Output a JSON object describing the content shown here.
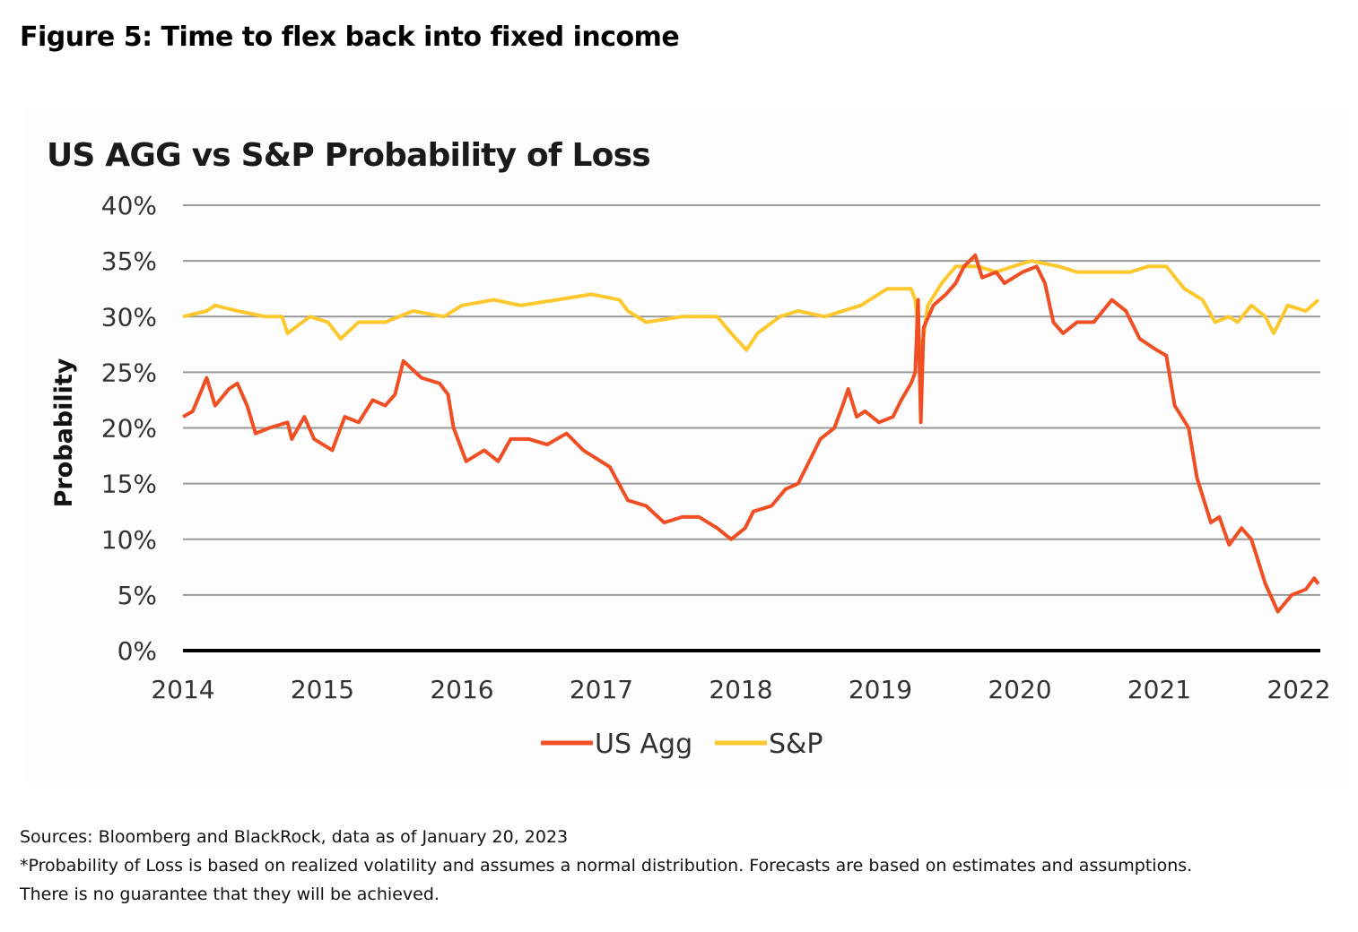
{
  "figure_title": "Figure 5: Time to flex back into fixed income",
  "notes": [
    "Sources: Bloomberg and BlackRock, data as of January 20, 2023",
    "*Probability of Loss is based on realized volatility and assumes a normal distribution. Forecasts are based on estimates and assumptions.",
    "There is no guarantee that they will be achieved."
  ],
  "chart_data": {
    "type": "line",
    "title": "US AGG vs S&P Probability of Loss",
    "xlabel": "",
    "ylabel": "Probability",
    "xlim": [
      2014,
      2022.16
    ],
    "ylim": [
      0,
      40
    ],
    "x_ticks": [
      2014,
      2015,
      2016,
      2017,
      2018,
      2019,
      2020,
      2021,
      2022
    ],
    "x_tick_labels": [
      "2014",
      "2015",
      "2016",
      "2017",
      "2018",
      "2019",
      "2020",
      "2021",
      "2022"
    ],
    "y_ticks": [
      0,
      5,
      10,
      15,
      20,
      25,
      30,
      35,
      40
    ],
    "y_tick_labels": [
      "0%",
      "5%",
      "10%",
      "15%",
      "20%",
      "25%",
      "30%",
      "35%",
      "40%"
    ],
    "grid": true,
    "legend_position": "bottom-center",
    "series": [
      {
        "name": "US Agg",
        "color": "#f04e23",
        "points": [
          [
            2014.0,
            21
          ],
          [
            2014.07,
            21.5
          ],
          [
            2014.17,
            24.5
          ],
          [
            2014.23,
            22
          ],
          [
            2014.33,
            23.5
          ],
          [
            2014.39,
            24
          ],
          [
            2014.46,
            22
          ],
          [
            2014.52,
            19.5
          ],
          [
            2014.62,
            20
          ],
          [
            2014.75,
            20.5
          ],
          [
            2014.78,
            19
          ],
          [
            2014.87,
            21
          ],
          [
            2014.94,
            19
          ],
          [
            2015.07,
            18
          ],
          [
            2015.16,
            21
          ],
          [
            2015.26,
            20.5
          ],
          [
            2015.36,
            22.5
          ],
          [
            2015.45,
            22
          ],
          [
            2015.52,
            23
          ],
          [
            2015.58,
            26
          ],
          [
            2015.71,
            24.5
          ],
          [
            2015.84,
            24
          ],
          [
            2015.9,
            23
          ],
          [
            2015.94,
            20
          ],
          [
            2016.03,
            17
          ],
          [
            2016.16,
            18
          ],
          [
            2016.26,
            17
          ],
          [
            2016.35,
            19
          ],
          [
            2016.48,
            19
          ],
          [
            2016.61,
            18.5
          ],
          [
            2016.75,
            19.5
          ],
          [
            2016.87,
            18
          ],
          [
            2017.06,
            16.5
          ],
          [
            2017.19,
            13.5
          ],
          [
            2017.32,
            13
          ],
          [
            2017.45,
            11.5
          ],
          [
            2017.58,
            12
          ],
          [
            2017.7,
            12
          ],
          [
            2017.83,
            11
          ],
          [
            2017.93,
            10
          ],
          [
            2018.03,
            11
          ],
          [
            2018.09,
            12.5
          ],
          [
            2018.22,
            13
          ],
          [
            2018.32,
            14.5
          ],
          [
            2018.41,
            15
          ],
          [
            2018.51,
            17.5
          ],
          [
            2018.57,
            19
          ],
          [
            2018.67,
            20
          ],
          [
            2018.73,
            22
          ],
          [
            2018.77,
            23.5
          ],
          [
            2018.83,
            21
          ],
          [
            2018.89,
            21.5
          ],
          [
            2018.99,
            20.5
          ],
          [
            2019.09,
            21
          ],
          [
            2019.15,
            22.5
          ],
          [
            2019.22,
            24
          ],
          [
            2019.25,
            25
          ],
          [
            2019.27,
            31.5
          ],
          [
            2019.29,
            20.5
          ],
          [
            2019.31,
            29
          ],
          [
            2019.38,
            31
          ],
          [
            2019.47,
            32
          ],
          [
            2019.54,
            33
          ],
          [
            2019.6,
            34.5
          ],
          [
            2019.68,
            35.5
          ],
          [
            2019.73,
            33.5
          ],
          [
            2019.83,
            34
          ],
          [
            2019.89,
            33
          ],
          [
            2020.02,
            34
          ],
          [
            2020.12,
            34.5
          ],
          [
            2020.18,
            33
          ],
          [
            2020.24,
            29.5
          ],
          [
            2020.31,
            28.5
          ],
          [
            2020.41,
            29.5
          ],
          [
            2020.53,
            29.5
          ],
          [
            2020.66,
            31.5
          ],
          [
            2020.76,
            30.5
          ],
          [
            2020.86,
            28
          ],
          [
            2020.98,
            27
          ],
          [
            2021.05,
            26.5
          ],
          [
            2021.11,
            22
          ],
          [
            2021.21,
            20
          ],
          [
            2021.27,
            15.5
          ],
          [
            2021.37,
            11.5
          ],
          [
            2021.43,
            12
          ],
          [
            2021.5,
            9.5
          ],
          [
            2021.59,
            11
          ],
          [
            2021.66,
            10
          ],
          [
            2021.76,
            6
          ],
          [
            2021.85,
            3.5
          ],
          [
            2021.95,
            5
          ],
          [
            2022.05,
            5.5
          ],
          [
            2022.11,
            6.5
          ],
          [
            2022.14,
            6
          ]
        ]
      },
      {
        "name": "S&P",
        "color": "#fcc82e",
        "points": [
          [
            2014.0,
            30
          ],
          [
            2014.17,
            30.5
          ],
          [
            2014.23,
            31
          ],
          [
            2014.39,
            30.5
          ],
          [
            2014.59,
            30
          ],
          [
            2014.71,
            30
          ],
          [
            2014.75,
            28.5
          ],
          [
            2014.91,
            30
          ],
          [
            2015.04,
            29.5
          ],
          [
            2015.13,
            28
          ],
          [
            2015.26,
            29.5
          ],
          [
            2015.45,
            29.5
          ],
          [
            2015.65,
            30.5
          ],
          [
            2015.87,
            30
          ],
          [
            2016.0,
            31
          ],
          [
            2016.23,
            31.5
          ],
          [
            2016.42,
            31
          ],
          [
            2016.68,
            31.5
          ],
          [
            2016.93,
            32
          ],
          [
            2017.13,
            31.5
          ],
          [
            2017.19,
            30.5
          ],
          [
            2017.32,
            29.5
          ],
          [
            2017.58,
            30
          ],
          [
            2017.83,
            30
          ],
          [
            2017.93,
            28.5
          ],
          [
            2018.04,
            27
          ],
          [
            2018.12,
            28.5
          ],
          [
            2018.28,
            30
          ],
          [
            2018.41,
            30.5
          ],
          [
            2018.6,
            30
          ],
          [
            2018.86,
            31
          ],
          [
            2019.05,
            32.5
          ],
          [
            2019.22,
            32.5
          ],
          [
            2019.25,
            31.5
          ],
          [
            2019.29,
            26.5
          ],
          [
            2019.34,
            31
          ],
          [
            2019.44,
            33
          ],
          [
            2019.54,
            34.5
          ],
          [
            2019.7,
            34.5
          ],
          [
            2019.83,
            34
          ],
          [
            2019.95,
            34.5
          ],
          [
            2020.08,
            35
          ],
          [
            2020.28,
            34.5
          ],
          [
            2020.41,
            34
          ],
          [
            2020.6,
            34
          ],
          [
            2020.79,
            34
          ],
          [
            2020.92,
            34.5
          ],
          [
            2021.05,
            34.5
          ],
          [
            2021.18,
            32.5
          ],
          [
            2021.31,
            31.5
          ],
          [
            2021.4,
            29.5
          ],
          [
            2021.5,
            30
          ],
          [
            2021.56,
            29.5
          ],
          [
            2021.66,
            31
          ],
          [
            2021.76,
            30
          ],
          [
            2021.82,
            28.5
          ],
          [
            2021.92,
            31
          ],
          [
            2022.05,
            30.5
          ],
          [
            2022.14,
            31.5
          ]
        ]
      }
    ]
  }
}
